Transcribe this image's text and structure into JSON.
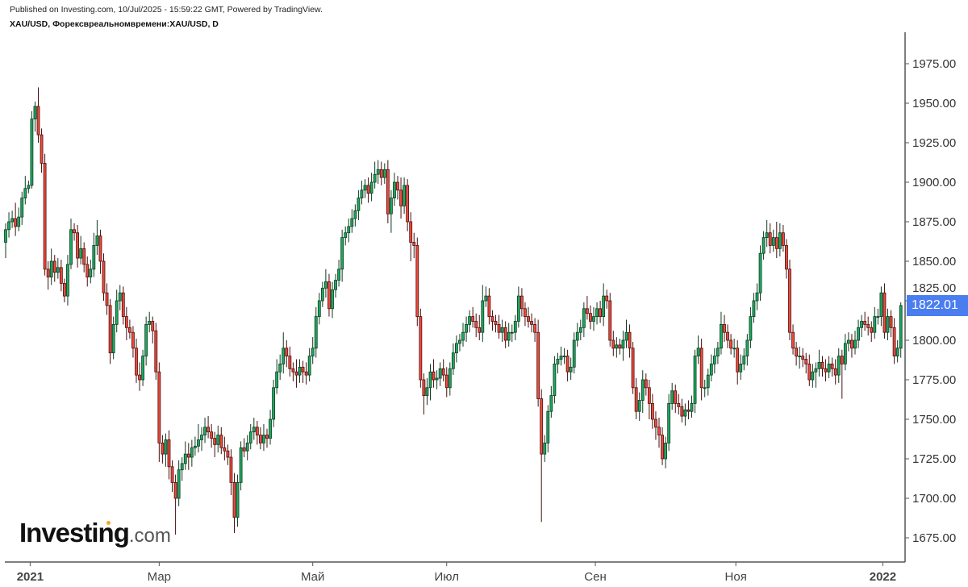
{
  "header": {
    "published": "Published on Investing.com, 10/Jul/2025 - 15:59:22 GMT, Powered by TradingView.",
    "symbol": "XAU/USD, Форексвреальномвремени:XAU/USD, D"
  },
  "logo": {
    "main": "Investing",
    "suffix": ".com"
  },
  "colors": {
    "up": "#1fa862",
    "down": "#ee4b3c",
    "up_stroke": "#0d3b20",
    "down_stroke": "#4a0d0d",
    "price_tag": "#4a7df0"
  },
  "chart_data": {
    "type": "candlestick",
    "title": "",
    "ylim": [
      1665,
      1995
    ],
    "y_ticks": [
      "1675.00",
      "1700.00",
      "1725.00",
      "1750.00",
      "1775.00",
      "1800.00",
      "1825.00",
      "1850.00",
      "1875.00",
      "1900.00",
      "1925.00",
      "1950.00",
      "1975.00"
    ],
    "x_ticks": [
      {
        "label": "2021",
        "bold": true,
        "index": 7.5
      },
      {
        "label": "Мар",
        "bold": false,
        "index": 47
      },
      {
        "label": "Май",
        "bold": false,
        "index": 94
      },
      {
        "label": "Июл",
        "bold": false,
        "index": 135
      },
      {
        "label": "Сен",
        "bold": false,
        "index": 180.5
      },
      {
        "label": "Ноя",
        "bold": false,
        "index": 223.5
      },
      {
        "label": "2022",
        "bold": true,
        "index": 268.5
      }
    ],
    "last_price": "1822.01",
    "first_open": 1862,
    "close": [
      1870,
      1875,
      1877,
      1872,
      1878,
      1890,
      1896,
      1898,
      1940,
      1948,
      1930,
      1912,
      1845,
      1840,
      1850,
      1843,
      1846,
      1836,
      1828,
      1848,
      1870,
      1868,
      1852,
      1858,
      1848,
      1840,
      1845,
      1860,
      1866,
      1850,
      1830,
      1822,
      1792,
      1810,
      1825,
      1830,
      1815,
      1808,
      1805,
      1795,
      1778,
      1775,
      1790,
      1810,
      1812,
      1806,
      1780,
      1735,
      1728,
      1737,
      1720,
      1710,
      1700,
      1718,
      1722,
      1728,
      1726,
      1732,
      1733,
      1737,
      1740,
      1745,
      1742,
      1738,
      1734,
      1740,
      1732,
      1730,
      1726,
      1710,
      1688,
      1710,
      1732,
      1730,
      1735,
      1742,
      1745,
      1740,
      1735,
      1740,
      1738,
      1750,
      1770,
      1780,
      1785,
      1795,
      1790,
      1782,
      1780,
      1778,
      1783,
      1780,
      1778,
      1790,
      1795,
      1815,
      1825,
      1833,
      1837,
      1820,
      1832,
      1838,
      1845,
      1865,
      1868,
      1872,
      1877,
      1882,
      1890,
      1895,
      1898,
      1893,
      1900,
      1905,
      1908,
      1903,
      1908,
      1880,
      1890,
      1900,
      1895,
      1885,
      1898,
      1875,
      1862,
      1860,
      1815,
      1775,
      1765,
      1770,
      1780,
      1775,
      1776,
      1782,
      1778,
      1770,
      1782,
      1792,
      1798,
      1800,
      1805,
      1810,
      1815,
      1812,
      1808,
      1805,
      1825,
      1828,
      1815,
      1812,
      1810,
      1805,
      1808,
      1800,
      1805,
      1805,
      1812,
      1828,
      1820,
      1815,
      1812,
      1810,
      1805,
      1763,
      1728,
      1735,
      1755,
      1765,
      1785,
      1788,
      1790,
      1790,
      1780,
      1783,
      1800,
      1805,
      1808,
      1820,
      1817,
      1812,
      1815,
      1820,
      1815,
      1828,
      1825,
      1800,
      1795,
      1797,
      1795,
      1800,
      1805,
      1795,
      1770,
      1755,
      1762,
      1775,
      1770,
      1760,
      1750,
      1745,
      1740,
      1725,
      1735,
      1760,
      1768,
      1760,
      1758,
      1752,
      1756,
      1755,
      1760,
      1790,
      1795,
      1770,
      1770,
      1778,
      1785,
      1790,
      1795,
      1810,
      1805,
      1800,
      1795,
      1795,
      1780,
      1785,
      1790,
      1800,
      1815,
      1825,
      1830,
      1855,
      1865,
      1868,
      1860,
      1865,
      1858,
      1868,
      1860,
      1845,
      1805,
      1795,
      1790,
      1790,
      1788,
      1785,
      1775,
      1780,
      1782,
      1786,
      1782,
      1780,
      1785,
      1782,
      1778,
      1790,
      1785,
      1798,
      1800,
      1795,
      1800,
      1808,
      1812,
      1810,
      1808,
      1805,
      1815,
      1815,
      1830,
      1805,
      1815,
      1808,
      1790,
      1795,
      1822
    ],
    "upper_wick": [
      4,
      6,
      5,
      10,
      6,
      4,
      8,
      3,
      5,
      3,
      12,
      4,
      6,
      5,
      8,
      4,
      6,
      5,
      3,
      6,
      7,
      4,
      5,
      8,
      4,
      5,
      6,
      8,
      10,
      4,
      5,
      6,
      4,
      5,
      7,
      5,
      4,
      6,
      5,
      4,
      6,
      8,
      4,
      5,
      6,
      3,
      5,
      6,
      5,
      4,
      6,
      4,
      5,
      6,
      4,
      8,
      7,
      5,
      6,
      10,
      5,
      6,
      7,
      5,
      4,
      6,
      5,
      7,
      4,
      5,
      6,
      5,
      4,
      6,
      5,
      5,
      6,
      4,
      5,
      7,
      4,
      6,
      5,
      8,
      6,
      10,
      5,
      6,
      4,
      8,
      5,
      4,
      6,
      5,
      7,
      6,
      5,
      4,
      8,
      5,
      5,
      4,
      6,
      5,
      4,
      5,
      6,
      4,
      5,
      6,
      4,
      5,
      6,
      8,
      6,
      5,
      4,
      6,
      5,
      6,
      4,
      8,
      5,
      4,
      6,
      6,
      5,
      5,
      4,
      6,
      5,
      8,
      5,
      4,
      6,
      5,
      4,
      6,
      5,
      4,
      6,
      5,
      4,
      6,
      5,
      8,
      10,
      6,
      5,
      4,
      4,
      6,
      5,
      4,
      6,
      5,
      4,
      6,
      5,
      4,
      6,
      5,
      4,
      8,
      6,
      5,
      4,
      6,
      5,
      4,
      6,
      5,
      4,
      6,
      5,
      6,
      5,
      4,
      8,
      5,
      6,
      4,
      5,
      8,
      4,
      5,
      6,
      5,
      4,
      6,
      8,
      5,
      4,
      6,
      5,
      6,
      4,
      5,
      6,
      5,
      6,
      5,
      4,
      6,
      5,
      4,
      6,
      5,
      4,
      6,
      5,
      4,
      8,
      6,
      5,
      4,
      6,
      5,
      4,
      8,
      6,
      5,
      4,
      6,
      5,
      6,
      5,
      4,
      6,
      5,
      6,
      5,
      4,
      8,
      6,
      5,
      10,
      6,
      5,
      4,
      6,
      5,
      4,
      6,
      5,
      4,
      6,
      5,
      4,
      8,
      4,
      6,
      5,
      4,
      6,
      5,
      4,
      6,
      5,
      4,
      6,
      5,
      4,
      6,
      5,
      4,
      6,
      5,
      4,
      6,
      5,
      4,
      6,
      5,
      2
    ],
    "lower_wick": [
      10,
      5,
      4,
      6,
      3,
      5,
      4,
      3,
      2,
      8,
      5,
      6,
      4,
      8,
      5,
      6,
      4,
      5,
      4,
      6,
      3,
      5,
      6,
      4,
      5,
      6,
      4,
      5,
      6,
      8,
      5,
      6,
      7,
      4,
      5,
      6,
      5,
      8,
      4,
      6,
      5,
      7,
      4,
      6,
      5,
      8,
      5,
      12,
      6,
      8,
      8,
      6,
      23,
      5,
      7,
      4,
      8,
      6,
      5,
      4,
      7,
      5,
      4,
      6,
      8,
      5,
      4,
      6,
      5,
      8,
      10,
      6,
      5,
      4,
      6,
      4,
      5,
      6,
      4,
      5,
      6,
      4,
      5,
      4,
      5,
      6,
      7,
      5,
      6,
      8,
      5,
      7,
      6,
      4,
      5,
      6,
      5,
      4,
      6,
      5,
      6,
      5,
      4,
      8,
      5,
      6,
      4,
      5,
      6,
      4,
      5,
      6,
      5,
      4,
      6,
      5,
      4,
      6,
      12,
      5,
      6,
      8,
      5,
      6,
      12,
      8,
      6,
      5,
      12,
      6,
      8,
      5,
      6,
      5,
      4,
      6,
      5,
      4,
      6,
      5,
      4,
      6,
      5,
      4,
      6,
      5,
      6,
      4,
      5,
      6,
      5,
      4,
      6,
      5,
      4,
      6,
      5,
      4,
      5,
      6,
      4,
      5,
      6,
      5,
      43,
      5,
      6,
      4,
      5,
      6,
      4,
      5,
      6,
      5,
      4,
      4,
      5,
      6,
      4,
      5,
      6,
      5,
      4,
      6,
      5,
      4,
      5,
      6,
      4,
      8,
      5,
      6,
      4,
      5,
      6,
      8,
      5,
      10,
      6,
      8,
      8,
      4,
      6,
      5,
      4,
      6,
      5,
      4,
      6,
      5,
      4,
      6,
      5,
      8,
      6,
      5,
      4,
      6,
      5,
      4,
      6,
      5,
      4,
      6,
      8,
      5,
      4,
      6,
      5,
      4,
      6,
      5,
      4,
      6,
      5,
      4,
      6,
      5,
      4,
      6,
      5,
      4,
      6,
      8,
      5,
      6,
      4,
      5,
      10,
      5,
      5,
      6,
      4,
      5,
      6,
      5,
      22,
      4,
      5,
      6,
      4,
      5,
      6,
      4,
      5,
      6,
      4,
      5,
      6,
      4,
      5,
      6,
      5,
      4,
      6
    ]
  }
}
